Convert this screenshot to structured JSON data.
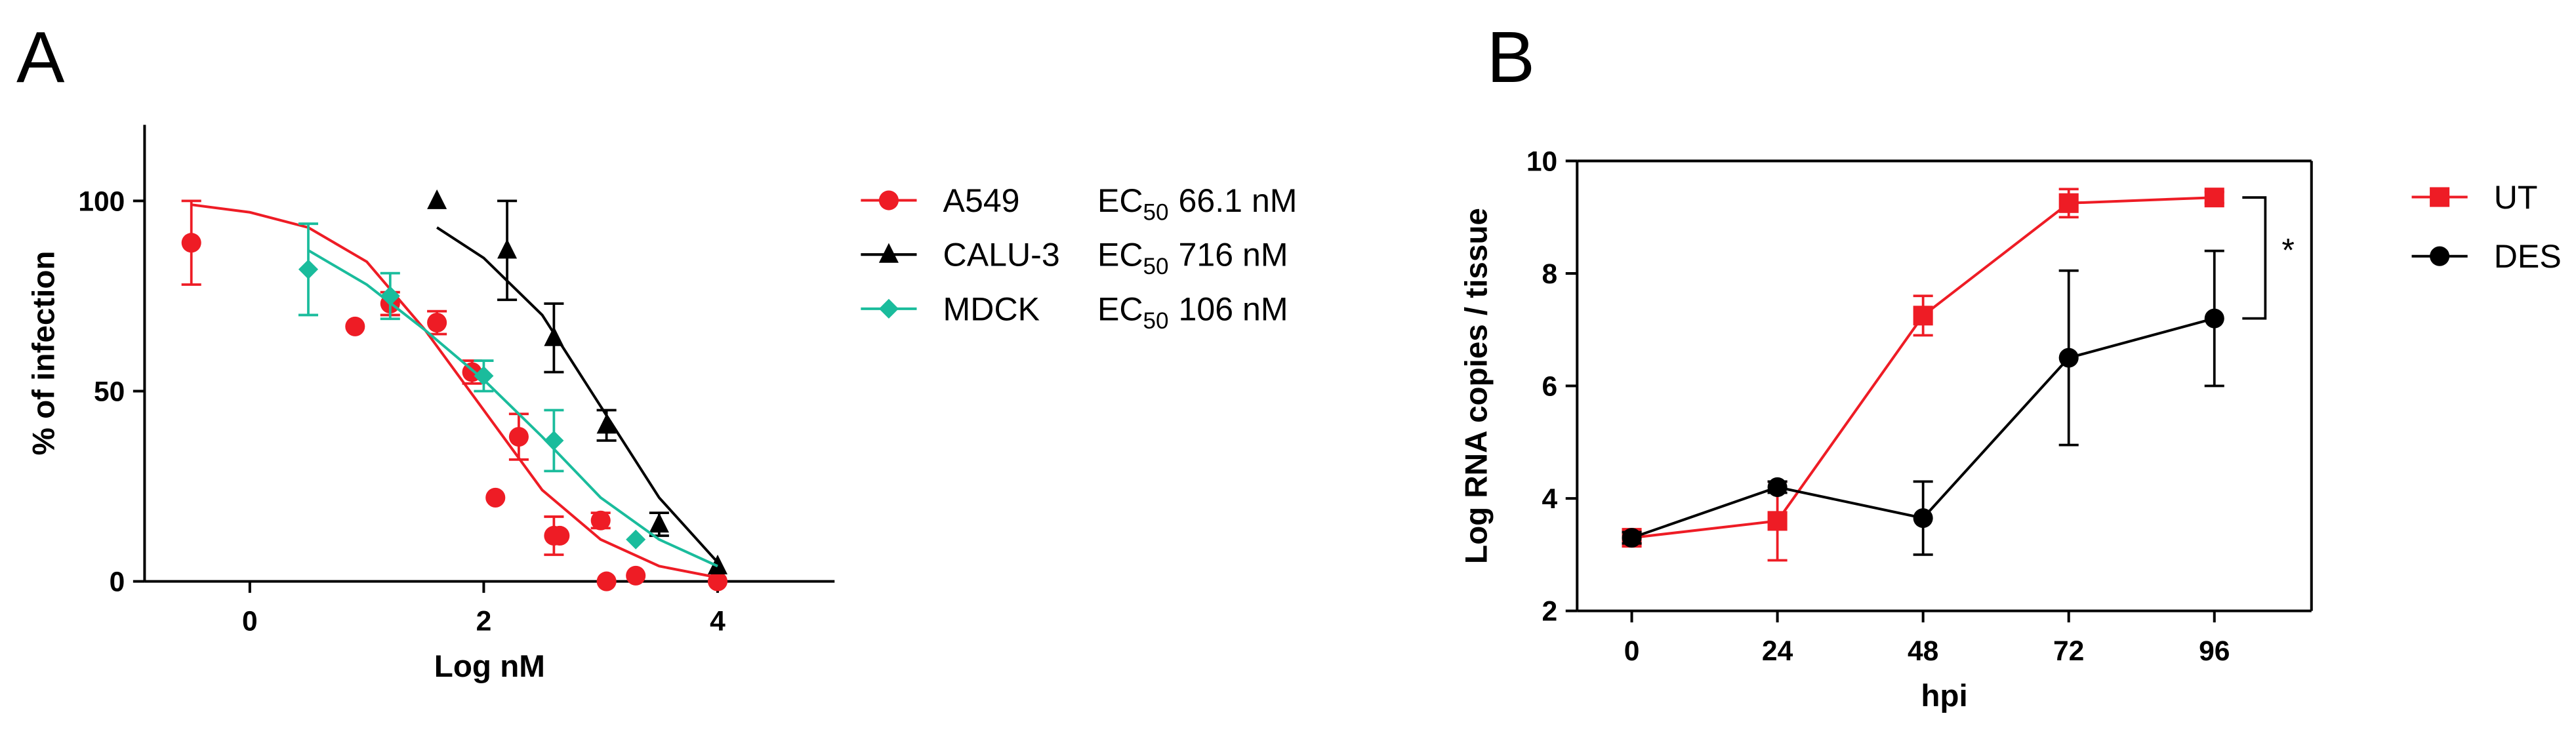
{
  "chart_data": [
    {
      "type": "scatter",
      "panel_label": "A",
      "x_label": "Log nM",
      "y_label": "% of infection",
      "xlim": [
        -0.9,
        5
      ],
      "ylim": [
        0,
        120
      ],
      "xticks": [
        0,
        2,
        4
      ],
      "yticks": [
        0,
        50,
        100
      ],
      "frame": false,
      "series": [
        {
          "name": "A549",
          "color": "#ee1c25",
          "marker": "circle",
          "annotation": {
            "prefix": "EC",
            "subscript": "50",
            "text": "66.1 nM"
          },
          "x": [
            -0.5,
            0.9,
            1.2,
            1.6,
            1.9,
            2.1,
            2.3,
            2.6,
            2.65,
            3.0,
            3.05,
            3.3,
            4.0
          ],
          "values": [
            89,
            67,
            73,
            68,
            55,
            22,
            38,
            12,
            12,
            16,
            0,
            1.5,
            0
          ],
          "errors": [
            11,
            null,
            3,
            3,
            3,
            null,
            6,
            5,
            null,
            2,
            null,
            null,
            null
          ],
          "fit": {
            "x": [
              -0.5,
              0,
              0.5,
              1,
              1.5,
              2,
              2.5,
              3,
              3.5,
              4
            ],
            "y": [
              99,
              97,
              93,
              84,
              66,
              45,
              24,
              11,
              4,
              1
            ]
          }
        },
        {
          "name": "CALU-3",
          "color": "#000000",
          "marker": "triangle",
          "annotation": {
            "prefix": "EC",
            "subscript": "50",
            "text": "716 nM"
          },
          "x": [
            1.6,
            2.2,
            2.6,
            3.05,
            3.5,
            4.0
          ],
          "values": [
            100,
            87,
            64,
            41,
            15,
            4
          ],
          "errors": [
            null,
            13,
            9,
            4,
            3,
            null
          ],
          "fit": {
            "x": [
              1.6,
              2,
              2.5,
              3,
              3.5,
              4
            ],
            "y": [
              93,
              85,
              70,
              46,
              22,
              5
            ]
          }
        },
        {
          "name": "MDCK",
          "color": "#1abc9c",
          "marker": "diamond",
          "annotation": {
            "prefix": "EC",
            "subscript": "50",
            "text": "106 nM"
          },
          "x": [
            0.5,
            1.2,
            2.0,
            2.6,
            3.3
          ],
          "values": [
            82,
            75,
            54,
            37,
            11
          ],
          "errors": [
            12,
            6,
            4,
            8,
            null
          ],
          "fit": {
            "x": [
              0.5,
              1,
              1.5,
              2,
              2.5,
              3,
              3.5,
              4
            ],
            "y": [
              87,
              78,
              66,
              53,
              38,
              22,
              11,
              4
            ]
          }
        }
      ]
    },
    {
      "type": "line",
      "panel_label": "B",
      "x_label": "hpi",
      "y_label": "Log RNA copies / tissue",
      "xlim": [
        -9,
        112
      ],
      "ylim": [
        2,
        10
      ],
      "xticks": [
        0,
        24,
        48,
        72,
        96
      ],
      "yticks": [
        2,
        4,
        6,
        8,
        10
      ],
      "frame": true,
      "significance": "*",
      "series": [
        {
          "name": "UT",
          "color": "#ee1c25",
          "marker": "square",
          "x": [
            0,
            24,
            48,
            72,
            96
          ],
          "values": [
            3.3,
            3.6,
            7.25,
            9.25,
            9.35
          ],
          "errors": [
            0.1,
            0.7,
            0.35,
            0.25,
            0.1
          ]
        },
        {
          "name": "DES",
          "color": "#000000",
          "marker": "circle",
          "x": [
            0,
            24,
            48,
            72,
            96
          ],
          "values": [
            3.3,
            4.2,
            3.65,
            6.5,
            7.2
          ],
          "errors": [
            0.1,
            0.1,
            0.65,
            1.55,
            1.2
          ]
        }
      ]
    }
  ]
}
